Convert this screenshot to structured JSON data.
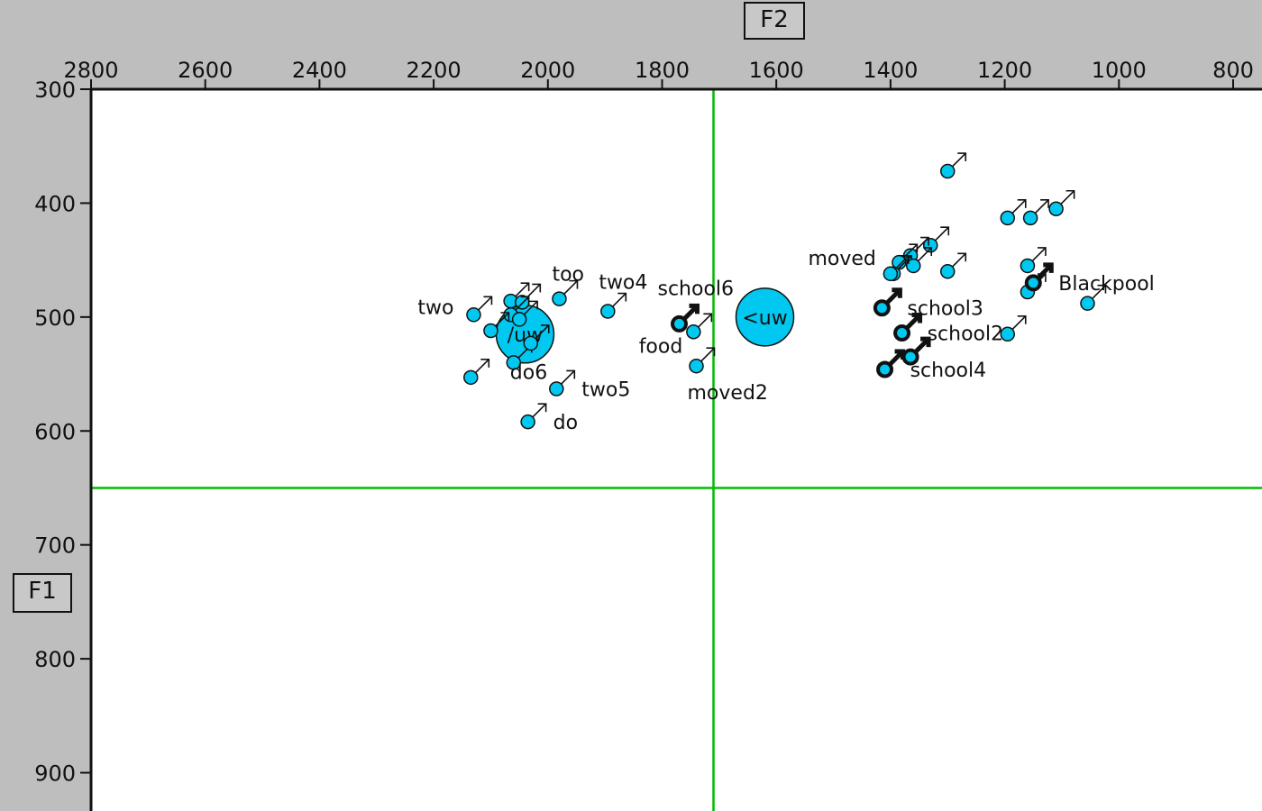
{
  "chart_data": {
    "type": "scatter",
    "xlabel": "F2",
    "ylabel": "F1",
    "xlim": [
      2800,
      700
    ],
    "ylim": [
      300,
      950
    ],
    "x_ticks": [
      "2800",
      "2600",
      "2400",
      "2200",
      "2000",
      "1800",
      "1600",
      "1400",
      "1200",
      "1000",
      "800"
    ],
    "y_ticks": [
      "300",
      "400",
      "500",
      "600",
      "700",
      "800",
      "900"
    ],
    "crosshair": {
      "x": 1710,
      "y": 650
    },
    "colors": {
      "point_fill": "#00c8f0",
      "crosshair": "#00bb00",
      "plot_bg": "#ffffff",
      "frame_bg": "#bebebe"
    },
    "means": [
      {
        "label": "/uw",
        "x": 2040,
        "y": 515
      },
      {
        "label": "<uw",
        "x": 1620,
        "y": 500
      }
    ],
    "points": [
      {
        "x": 1300,
        "y": 372,
        "label": ""
      },
      {
        "x": 1195,
        "y": 413,
        "label": ""
      },
      {
        "x": 1155,
        "y": 413,
        "label": ""
      },
      {
        "x": 1110,
        "y": 405,
        "label": ""
      },
      {
        "x": 1330,
        "y": 437,
        "label": ""
      },
      {
        "x": 1365,
        "y": 446,
        "label": ""
      },
      {
        "x": 1385,
        "y": 452,
        "label": ""
      },
      {
        "x": 1395,
        "y": 462,
        "label": ""
      },
      {
        "x": 1360,
        "y": 455,
        "label": ""
      },
      {
        "x": 1300,
        "y": 460,
        "label": ""
      },
      {
        "x": 1160,
        "y": 455,
        "label": ""
      },
      {
        "x": 1160,
        "y": 478,
        "label": ""
      },
      {
        "x": 1055,
        "y": 488,
        "label": ""
      },
      {
        "x": 1195,
        "y": 515,
        "label": ""
      },
      {
        "x": 1400,
        "y": 462,
        "label": "moved"
      },
      {
        "x": 1150,
        "y": 470,
        "label": "Blackpool",
        "bold": true
      },
      {
        "x": 1415,
        "y": 492,
        "label": "school3",
        "bold": true
      },
      {
        "x": 1380,
        "y": 514,
        "label": "school2",
        "bold": true
      },
      {
        "x": 1410,
        "y": 546,
        "label": "school4",
        "bold": true
      },
      {
        "x": 1365,
        "y": 535,
        "label": "",
        "bold": true
      },
      {
        "x": 1770,
        "y": 506,
        "label": "school6",
        "bold": true
      },
      {
        "x": 2130,
        "y": 498,
        "label": "two"
      },
      {
        "x": 1980,
        "y": 484,
        "label": "too"
      },
      {
        "x": 1895,
        "y": 495,
        "label": "two4"
      },
      {
        "x": 1745,
        "y": 513,
        "label": "food"
      },
      {
        "x": 1740,
        "y": 543,
        "label": "moved2"
      },
      {
        "x": 1985,
        "y": 563,
        "label": "two5"
      },
      {
        "x": 2035,
        "y": 592,
        "label": "do"
      },
      {
        "x": 2060,
        "y": 540,
        "label": "do6"
      },
      {
        "x": 2135,
        "y": 553,
        "label": ""
      },
      {
        "x": 2065,
        "y": 486,
        "label": ""
      },
      {
        "x": 2045,
        "y": 487,
        "label": ""
      },
      {
        "x": 2065,
        "y": 498,
        "label": ""
      },
      {
        "x": 2050,
        "y": 502,
        "label": ""
      },
      {
        "x": 2100,
        "y": 512,
        "label": ""
      },
      {
        "x": 2030,
        "y": 523,
        "label": ""
      }
    ]
  }
}
